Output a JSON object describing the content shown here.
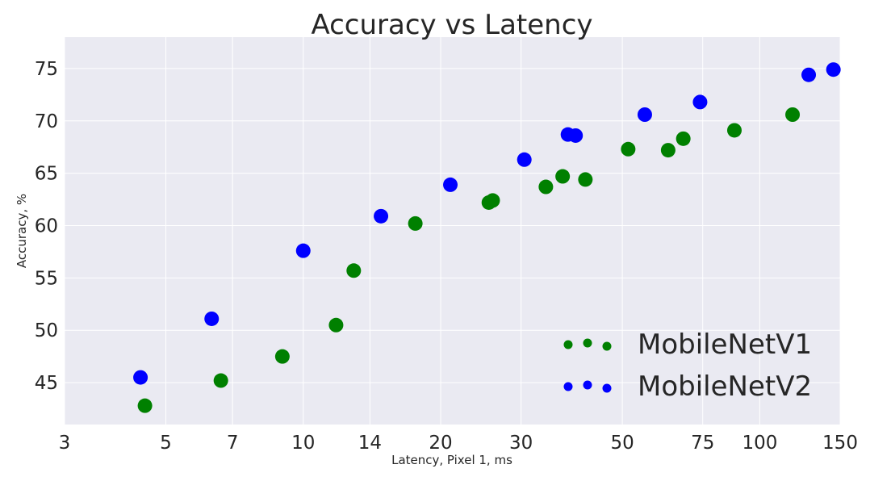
{
  "chart_data": {
    "type": "scatter",
    "title": "Accuracy vs Latency",
    "xlabel": "Latency, Pixel 1, ms",
    "ylabel": "Accuracy, %",
    "xscale": "log",
    "xlim": [
      3,
      150
    ],
    "ylim": [
      41,
      78
    ],
    "xticks": [
      3,
      5,
      7,
      10,
      14,
      20,
      30,
      50,
      75,
      100,
      150
    ],
    "xtick_labels": [
      "3",
      "5",
      "7",
      "10",
      "14",
      "20",
      "30",
      "50",
      "75",
      "100",
      "150"
    ],
    "yticks": [
      45,
      50,
      55,
      60,
      65,
      70,
      75
    ],
    "ytick_labels": [
      "45",
      "50",
      "55",
      "60",
      "65",
      "70",
      "75"
    ],
    "grid": true,
    "legend_position": "bottom-right",
    "background_color": "#eaeaf2",
    "series": [
      {
        "name": "MobileNetV1",
        "color": "#008000",
        "points": [
          {
            "x": 4.5,
            "y": 42.8
          },
          {
            "x": 6.6,
            "y": 45.2
          },
          {
            "x": 9.0,
            "y": 47.5
          },
          {
            "x": 11.8,
            "y": 50.5
          },
          {
            "x": 12.9,
            "y": 55.7
          },
          {
            "x": 17.6,
            "y": 60.2
          },
          {
            "x": 25.5,
            "y": 62.2
          },
          {
            "x": 26.0,
            "y": 62.4
          },
          {
            "x": 34.0,
            "y": 63.7
          },
          {
            "x": 37.0,
            "y": 64.7
          },
          {
            "x": 41.5,
            "y": 64.4
          },
          {
            "x": 51.5,
            "y": 67.3
          },
          {
            "x": 63.0,
            "y": 67.2
          },
          {
            "x": 68.0,
            "y": 68.3
          },
          {
            "x": 88.0,
            "y": 69.1
          },
          {
            "x": 118.0,
            "y": 70.6
          }
        ]
      },
      {
        "name": "MobileNetV2",
        "color": "#0000ff",
        "points": [
          {
            "x": 4.4,
            "y": 45.5
          },
          {
            "x": 6.3,
            "y": 51.1
          },
          {
            "x": 10.0,
            "y": 57.6
          },
          {
            "x": 14.8,
            "y": 60.9
          },
          {
            "x": 21.0,
            "y": 63.9
          },
          {
            "x": 30.5,
            "y": 66.3
          },
          {
            "x": 38.0,
            "y": 68.7
          },
          {
            "x": 39.5,
            "y": 68.6
          },
          {
            "x": 56.0,
            "y": 70.6
          },
          {
            "x": 74.0,
            "y": 71.8
          },
          {
            "x": 128.0,
            "y": 74.4
          },
          {
            "x": 145.0,
            "y": 74.9
          }
        ]
      }
    ]
  }
}
